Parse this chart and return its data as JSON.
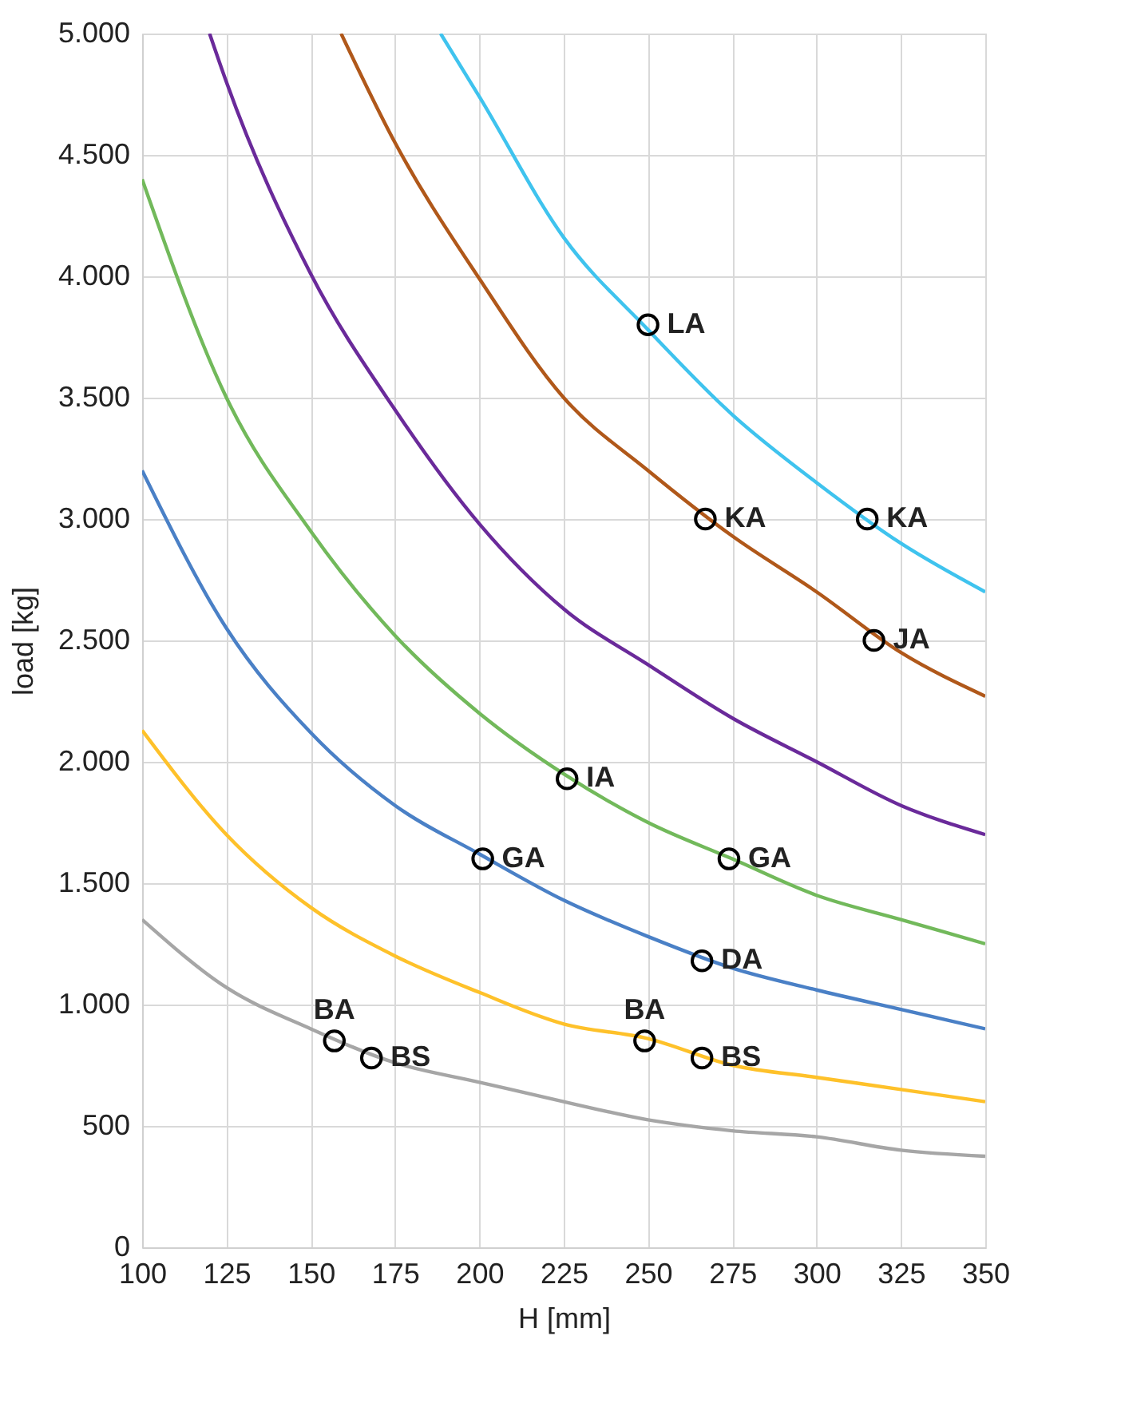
{
  "chart_data": {
    "type": "line",
    "xlabel": "H [mm]",
    "ylabel": "load [kg]",
    "xlim": [
      100,
      350
    ],
    "ylim": [
      0,
      5000
    ],
    "xticks": [
      100,
      125,
      150,
      175,
      200,
      225,
      250,
      275,
      300,
      325,
      350
    ],
    "yticks": [
      0,
      500,
      {
        "value": 1000,
        "label": "1.000"
      },
      {
        "value": 1500,
        "label": "1.500"
      },
      {
        "value": 2000,
        "label": "2.000"
      },
      {
        "value": 2500,
        "label": "2.500"
      },
      {
        "value": 3000,
        "label": "3.000"
      },
      {
        "value": 3500,
        "label": "3.500"
      },
      {
        "value": 4000,
        "label": "4.000"
      },
      {
        "value": 4500,
        "label": "4.500"
      },
      {
        "value": 5000,
        "label": "5.000"
      }
    ],
    "grid": true,
    "line_style": "solid",
    "series": [
      {
        "color": "#3fc3ee",
        "x": [
          188.5,
          200,
          225,
          250,
          275,
          300,
          325,
          350
        ],
        "values": [
          5000,
          4740,
          4160,
          3780,
          3430,
          3150,
          2900,
          2700
        ]
      },
      {
        "color": "#b0581a",
        "x": [
          159,
          175,
          200,
          225,
          250,
          275,
          300,
          325,
          350
        ],
        "values": [
          5000,
          4550,
          3990,
          3500,
          3200,
          2930,
          2700,
          2450,
          2270
        ]
      },
      {
        "color": "#6a2a9a",
        "x": [
          120,
          125,
          150,
          175,
          200,
          225,
          250,
          275,
          300,
          325,
          350
        ],
        "values": [
          5000,
          4800,
          4010,
          3450,
          2980,
          2630,
          2400,
          2180,
          2000,
          1820,
          1700
        ]
      },
      {
        "color": "#72b95b",
        "x": [
          100,
          125,
          150,
          175,
          200,
          225,
          250,
          275,
          300,
          325,
          350
        ],
        "values": [
          4400,
          3500,
          2950,
          2520,
          2200,
          1950,
          1750,
          1600,
          1450,
          1350,
          1250
        ]
      },
      {
        "color": "#4a80c6",
        "x": [
          100,
          125,
          150,
          175,
          200,
          225,
          250,
          275,
          300,
          325,
          350
        ],
        "values": [
          3200,
          2550,
          2120,
          1820,
          1620,
          1430,
          1280,
          1150,
          1060,
          980,
          900
        ]
      },
      {
        "color": "#fec12a",
        "x": [
          100,
          125,
          150,
          175,
          200,
          225,
          250,
          275,
          300,
          325,
          350
        ],
        "values": [
          2130,
          1700,
          1400,
          1200,
          1050,
          920,
          860,
          750,
          700,
          650,
          600
        ]
      },
      {
        "color": "#a6a6a6",
        "x": [
          100,
          125,
          150,
          175,
          200,
          225,
          250,
          275,
          300,
          325,
          350
        ],
        "values": [
          1350,
          1070,
          900,
          760,
          680,
          600,
          525,
          480,
          455,
          400,
          375
        ]
      },
      {
        "type": "scatter",
        "marker": "circle",
        "color": "#000000",
        "x": [
          250,
          267,
          315,
          317,
          226,
          201,
          274,
          266,
          157,
          168,
          249,
          266
        ],
        "values": [
          3800,
          3000,
          3000,
          2500,
          1930,
          1600,
          1600,
          1180,
          850,
          780,
          850,
          780
        ]
      }
    ],
    "annotations": [
      {
        "text": "LA",
        "x": 250,
        "y": 3800
      },
      {
        "text": "KA",
        "x": 267,
        "y": 3000
      },
      {
        "text": "KA",
        "x": 315,
        "y": 3000
      },
      {
        "text": "JA",
        "x": 317,
        "y": 2500
      },
      {
        "text": "IA",
        "x": 226,
        "y": 1930
      },
      {
        "text": "GA",
        "x": 201,
        "y": 1600
      },
      {
        "text": "GA",
        "x": 274,
        "y": 1600
      },
      {
        "text": "DA",
        "x": 266,
        "y": 1180
      },
      {
        "text": "BA",
        "x": 157,
        "y": 850
      },
      {
        "text": "BS",
        "x": 168,
        "y": 780
      },
      {
        "text": "BA",
        "x": 249,
        "y": 850
      },
      {
        "text": "BS",
        "x": 266,
        "y": 780
      }
    ]
  }
}
